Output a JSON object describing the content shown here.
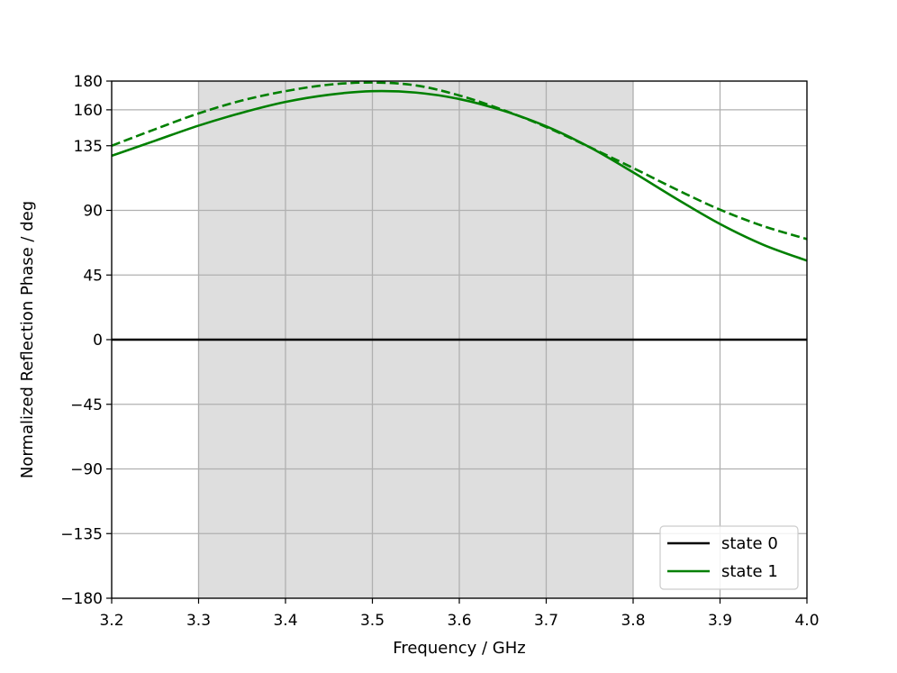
{
  "chart_data": {
    "type": "line",
    "xlabel": "Frequency / GHz",
    "ylabel": "Normalized Reflection Phase / deg",
    "xlim": [
      3.2,
      4.0
    ],
    "ylim": [
      -180,
      180
    ],
    "x_ticks": [
      3.2,
      3.3,
      3.4,
      3.5,
      3.6,
      3.7,
      3.8,
      3.9,
      4.0
    ],
    "x_tick_labels": [
      "3.2",
      "3.3",
      "3.4",
      "3.5",
      "3.6",
      "3.7",
      "3.8",
      "3.9",
      "4.0"
    ],
    "y_ticks": [
      -180,
      -135,
      -90,
      -45,
      0,
      45,
      90,
      135,
      160,
      180
    ],
    "y_tick_labels": [
      "−180",
      "−135",
      "−90",
      "−45",
      "0",
      "45",
      "90",
      "135",
      "160",
      "180"
    ],
    "grid": true,
    "shaded_band": {
      "x_start": 3.3,
      "x_end": 3.8,
      "color": "#dedede"
    },
    "legend": {
      "position": "bottom-right",
      "entries": [
        {
          "label": "state 0",
          "color": "#000000",
          "style": "solid"
        },
        {
          "label": "state 1",
          "color": "#008000",
          "style": "solid"
        }
      ]
    },
    "series": [
      {
        "name": "state 0",
        "color": "#000000",
        "dash": "solid",
        "x": [
          3.2,
          4.0
        ],
        "y": [
          0,
          0
        ]
      },
      {
        "name": "state 1",
        "color": "#008000",
        "dash": "solid",
        "x": [
          3.2,
          3.25,
          3.3,
          3.35,
          3.4,
          3.45,
          3.5,
          3.55,
          3.6,
          3.65,
          3.7,
          3.75,
          3.8,
          3.85,
          3.9,
          3.95,
          4.0
        ],
        "y": [
          128,
          138.5,
          149,
          158,
          165.5,
          170.5,
          173,
          172,
          167.5,
          159.5,
          148.5,
          134,
          116.5,
          98,
          80.5,
          66,
          55
        ]
      },
      {
        "color": "#008000",
        "dash": "dashed",
        "x": [
          3.2,
          3.25,
          3.3,
          3.35,
          3.4,
          3.45,
          3.5,
          3.55,
          3.6,
          3.65,
          3.7,
          3.75,
          3.8,
          3.85,
          3.9,
          3.95,
          4.0
        ],
        "y": [
          135,
          146.5,
          157.5,
          166.5,
          173,
          177.5,
          179,
          177,
          170,
          160,
          148,
          134,
          119.5,
          104.5,
          90.5,
          79,
          70
        ]
      }
    ]
  }
}
